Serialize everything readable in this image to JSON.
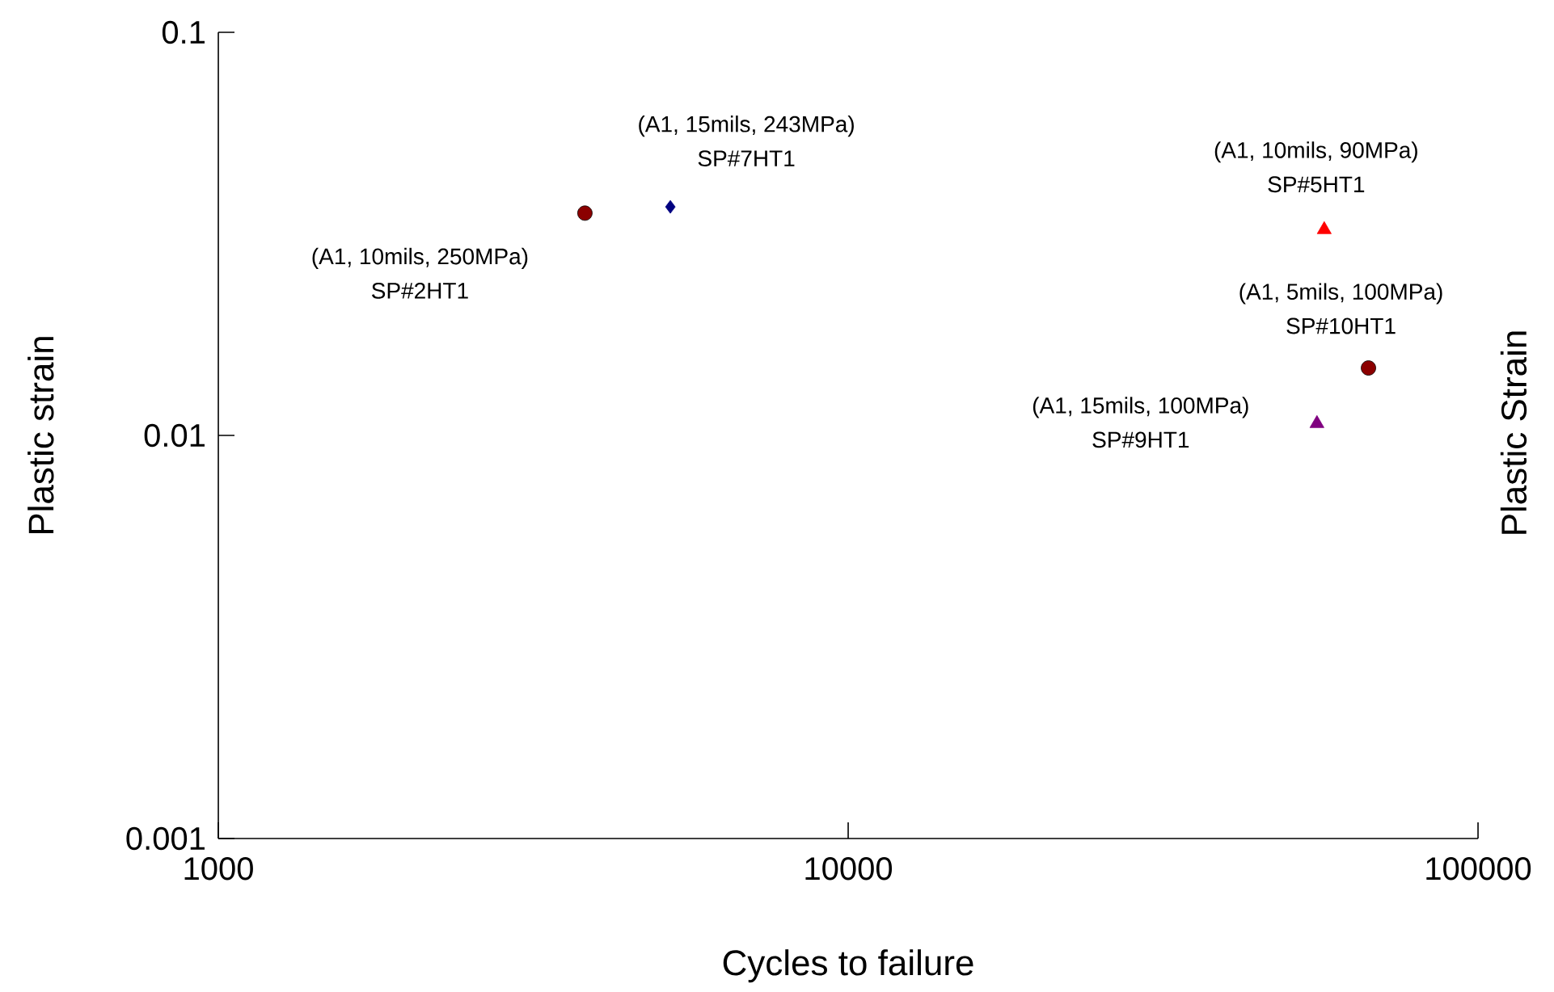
{
  "chart_data": {
    "type": "scatter",
    "xlabel": "Cycles to failure",
    "ylabel": "Plastic strain",
    "y2label": "Plastic Strain",
    "log": "xy",
    "xlim": [
      1000,
      100000
    ],
    "ylim": [
      0.001,
      0.1
    ],
    "xticks": [
      1000,
      10000,
      100000
    ],
    "yticks": [
      0.001,
      0.01,
      0.1
    ],
    "series": [
      {
        "x": [
          3820
        ],
        "values": [
          0.0356
        ],
        "color": "#8b0000",
        "marker": "circle"
      },
      {
        "x": [
          5220
        ],
        "values": [
          0.0369
        ],
        "color": "#000080",
        "marker": "diamond"
      },
      {
        "x": [
          57000
        ],
        "values": [
          0.0324
        ],
        "color": "#ff0000",
        "marker": "triangle"
      },
      {
        "x": [
          67000
        ],
        "values": [
          0.0147
        ],
        "color": "#8b0000",
        "marker": "circle"
      },
      {
        "x": [
          55500
        ],
        "values": [
          0.0107
        ],
        "color": "#800080",
        "marker": "triangle"
      }
    ],
    "annotations": [
      "(A1, 10mils, 250MPa)",
      "SP#2HT1",
      "(A1, 15mils, 243MPa)",
      "SP#7HT1",
      "(A1, 10mils, 90MPa)",
      "SP#5HT1",
      "(A1, 5mils, 100MPa)",
      "SP#10HT1",
      "(A1, 15mils, 100MPa)",
      "SP#9HT1"
    ]
  }
}
